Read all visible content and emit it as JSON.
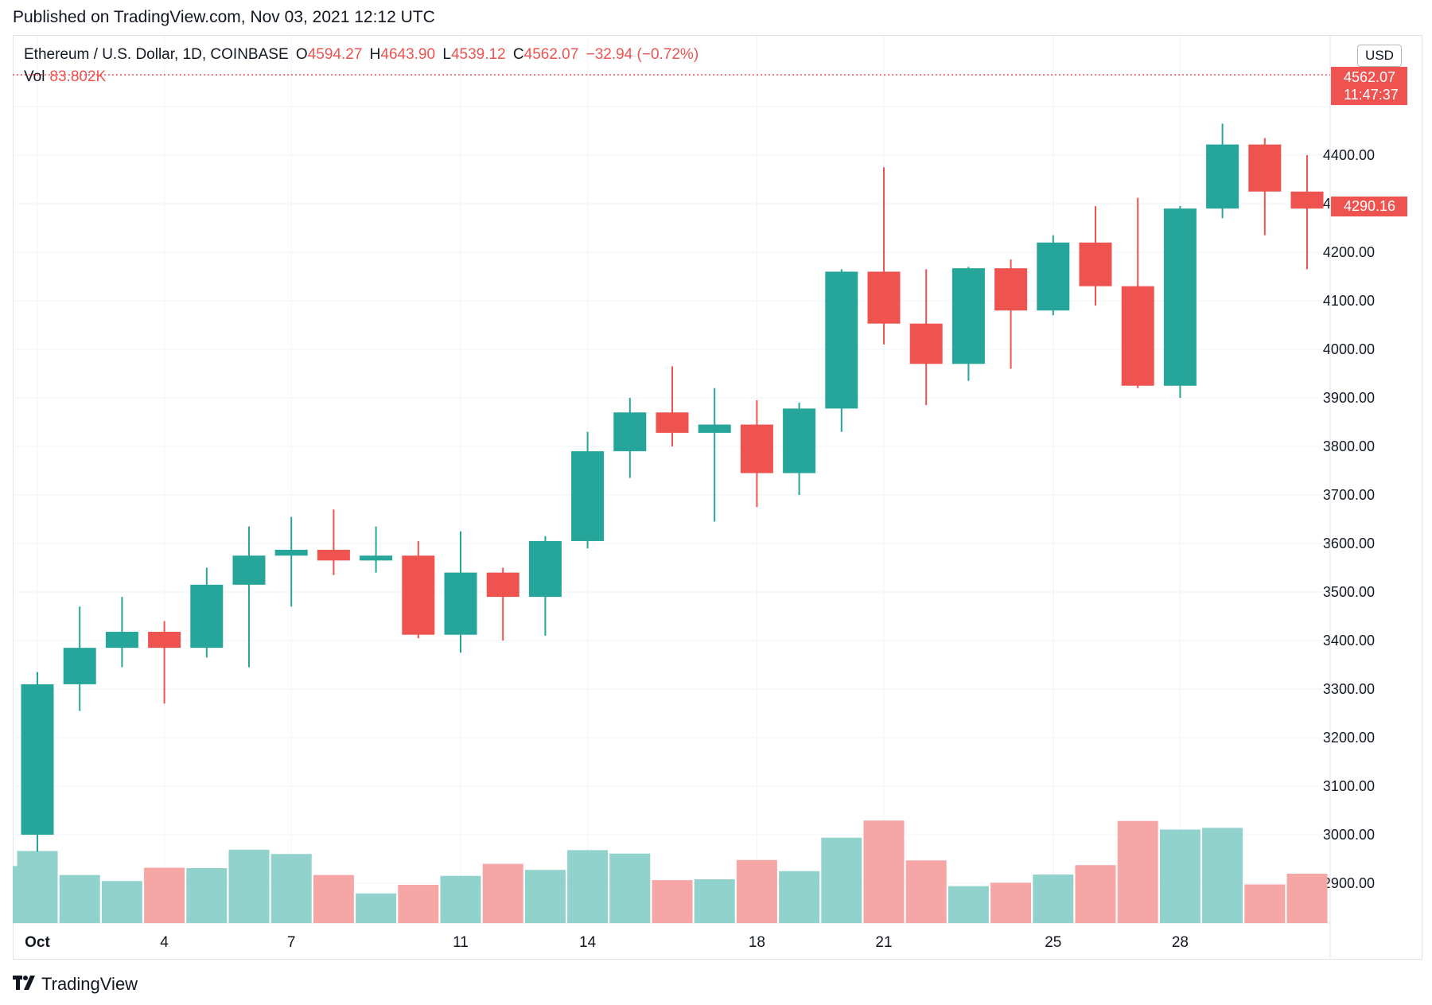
{
  "published": "Published on TradingView.com, Nov 03, 2021 12:12 UTC",
  "legend": {
    "symbol": "Ethereum / U.S. Dollar, 1D, COINBASE",
    "o_label": "O",
    "o_value": "4594.27",
    "h_label": "H",
    "h_value": "4643.90",
    "l_label": "L",
    "l_value": "4539.12",
    "c_label": "C",
    "c_value": "4562.07",
    "change": "−32.94 (−0.72%)",
    "vol_label": "Vol",
    "vol_value": "83.802K"
  },
  "currency": "USD",
  "last_price": {
    "value": "4562.07",
    "countdown": "11:47:37"
  },
  "prev_close_tag": "4290.16",
  "logo_text": "TradingView",
  "colors": {
    "up": "#26a69a",
    "down": "#ef5350",
    "vol_up": "#92d2cc",
    "vol_down": "#f5a6a5",
    "grid": "#f0f3fa"
  },
  "chart_data": {
    "type": "candlestick",
    "title": "Ethereum / U.S. Dollar, 1D, COINBASE",
    "ylim": [
      2820,
      4600
    ],
    "y_ticks": [
      "2900.00",
      "3000.00",
      "3100.00",
      "3200.00",
      "3300.00",
      "3400.00",
      "3500.00",
      "3600.00",
      "3700.00",
      "3800.00",
      "3900.00",
      "4000.00",
      "4100.00",
      "4200.00",
      "4300.00",
      "4400.00"
    ],
    "x_ticks": [
      {
        "index": 0,
        "label": "Oct"
      },
      {
        "index": 3,
        "label": "4"
      },
      {
        "index": 6,
        "label": "7"
      },
      {
        "index": 10,
        "label": "11"
      },
      {
        "index": 13,
        "label": "14"
      },
      {
        "index": 17,
        "label": "18"
      },
      {
        "index": 20,
        "label": "21"
      },
      {
        "index": 24,
        "label": "25"
      },
      {
        "index": 27,
        "label": "28"
      }
    ],
    "candles": [
      {
        "o": 3000,
        "h": 3335,
        "l": 2965,
        "c": 3310
      },
      {
        "o": 3310,
        "h": 3470,
        "l": 3255,
        "c": 3385
      },
      {
        "o": 3385,
        "h": 3490,
        "l": 3345,
        "c": 3418
      },
      {
        "o": 3418,
        "h": 3440,
        "l": 3270,
        "c": 3385
      },
      {
        "o": 3385,
        "h": 3550,
        "l": 3365,
        "c": 3515
      },
      {
        "o": 3515,
        "h": 3635,
        "l": 3345,
        "c": 3575
      },
      {
        "o": 3575,
        "h": 3655,
        "l": 3470,
        "c": 3587
      },
      {
        "o": 3587,
        "h": 3670,
        "l": 3535,
        "c": 3565
      },
      {
        "o": 3565,
        "h": 3635,
        "l": 3540,
        "c": 3575
      },
      {
        "o": 3575,
        "h": 3605,
        "l": 3405,
        "c": 3412
      },
      {
        "o": 3412,
        "h": 3625,
        "l": 3375,
        "c": 3540
      },
      {
        "o": 3540,
        "h": 3550,
        "l": 3400,
        "c": 3490
      },
      {
        "o": 3490,
        "h": 3615,
        "l": 3410,
        "c": 3605
      },
      {
        "o": 3605,
        "h": 3830,
        "l": 3590,
        "c": 3790
      },
      {
        "o": 3790,
        "h": 3900,
        "l": 3735,
        "c": 3870
      },
      {
        "o": 3870,
        "h": 3965,
        "l": 3800,
        "c": 3828
      },
      {
        "o": 3828,
        "h": 3920,
        "l": 3645,
        "c": 3845
      },
      {
        "o": 3845,
        "h": 3895,
        "l": 3675,
        "c": 3745
      },
      {
        "o": 3745,
        "h": 3890,
        "l": 3700,
        "c": 3878
      },
      {
        "o": 3878,
        "h": 4165,
        "l": 3830,
        "c": 4160
      },
      {
        "o": 4160,
        "h": 4375,
        "l": 4010,
        "c": 4053
      },
      {
        "o": 4053,
        "h": 4165,
        "l": 3885,
        "c": 3970
      },
      {
        "o": 3970,
        "h": 4170,
        "l": 3935,
        "c": 4167
      },
      {
        "o": 4167,
        "h": 4185,
        "l": 3960,
        "c": 4080
      },
      {
        "o": 4080,
        "h": 4235,
        "l": 4070,
        "c": 4220
      },
      {
        "o": 4220,
        "h": 4295,
        "l": 4090,
        "c": 4130
      },
      {
        "o": 4130,
        "h": 4312,
        "l": 3920,
        "c": 3925
      },
      {
        "o": 3925,
        "h": 4295,
        "l": 3900,
        "c": 4290
      },
      {
        "o": 4290,
        "h": 4465,
        "l": 4270,
        "c": 4422
      },
      {
        "o": 4422,
        "h": 4435,
        "l": 4235,
        "c": 4325
      },
      {
        "o": 4325,
        "h": 4400,
        "l": 4165,
        "c": 4290
      }
    ],
    "volume": {
      "note": "relative heights (fraction of volume pane)",
      "values": [
        0.168,
        0.112,
        0.098,
        0.129,
        0.128,
        0.171,
        0.161,
        0.112,
        0.069,
        0.089,
        0.11,
        0.138,
        0.124,
        0.17,
        0.162,
        0.1,
        0.102,
        0.147,
        0.121,
        0.199,
        0.239,
        0.146,
        0.086,
        0.094,
        0.113,
        0.135,
        0.238,
        0.218,
        0.222,
        0.09,
        0.115
      ],
      "first_partial_height": 0.168,
      "leading_bar": 0.133
    }
  }
}
